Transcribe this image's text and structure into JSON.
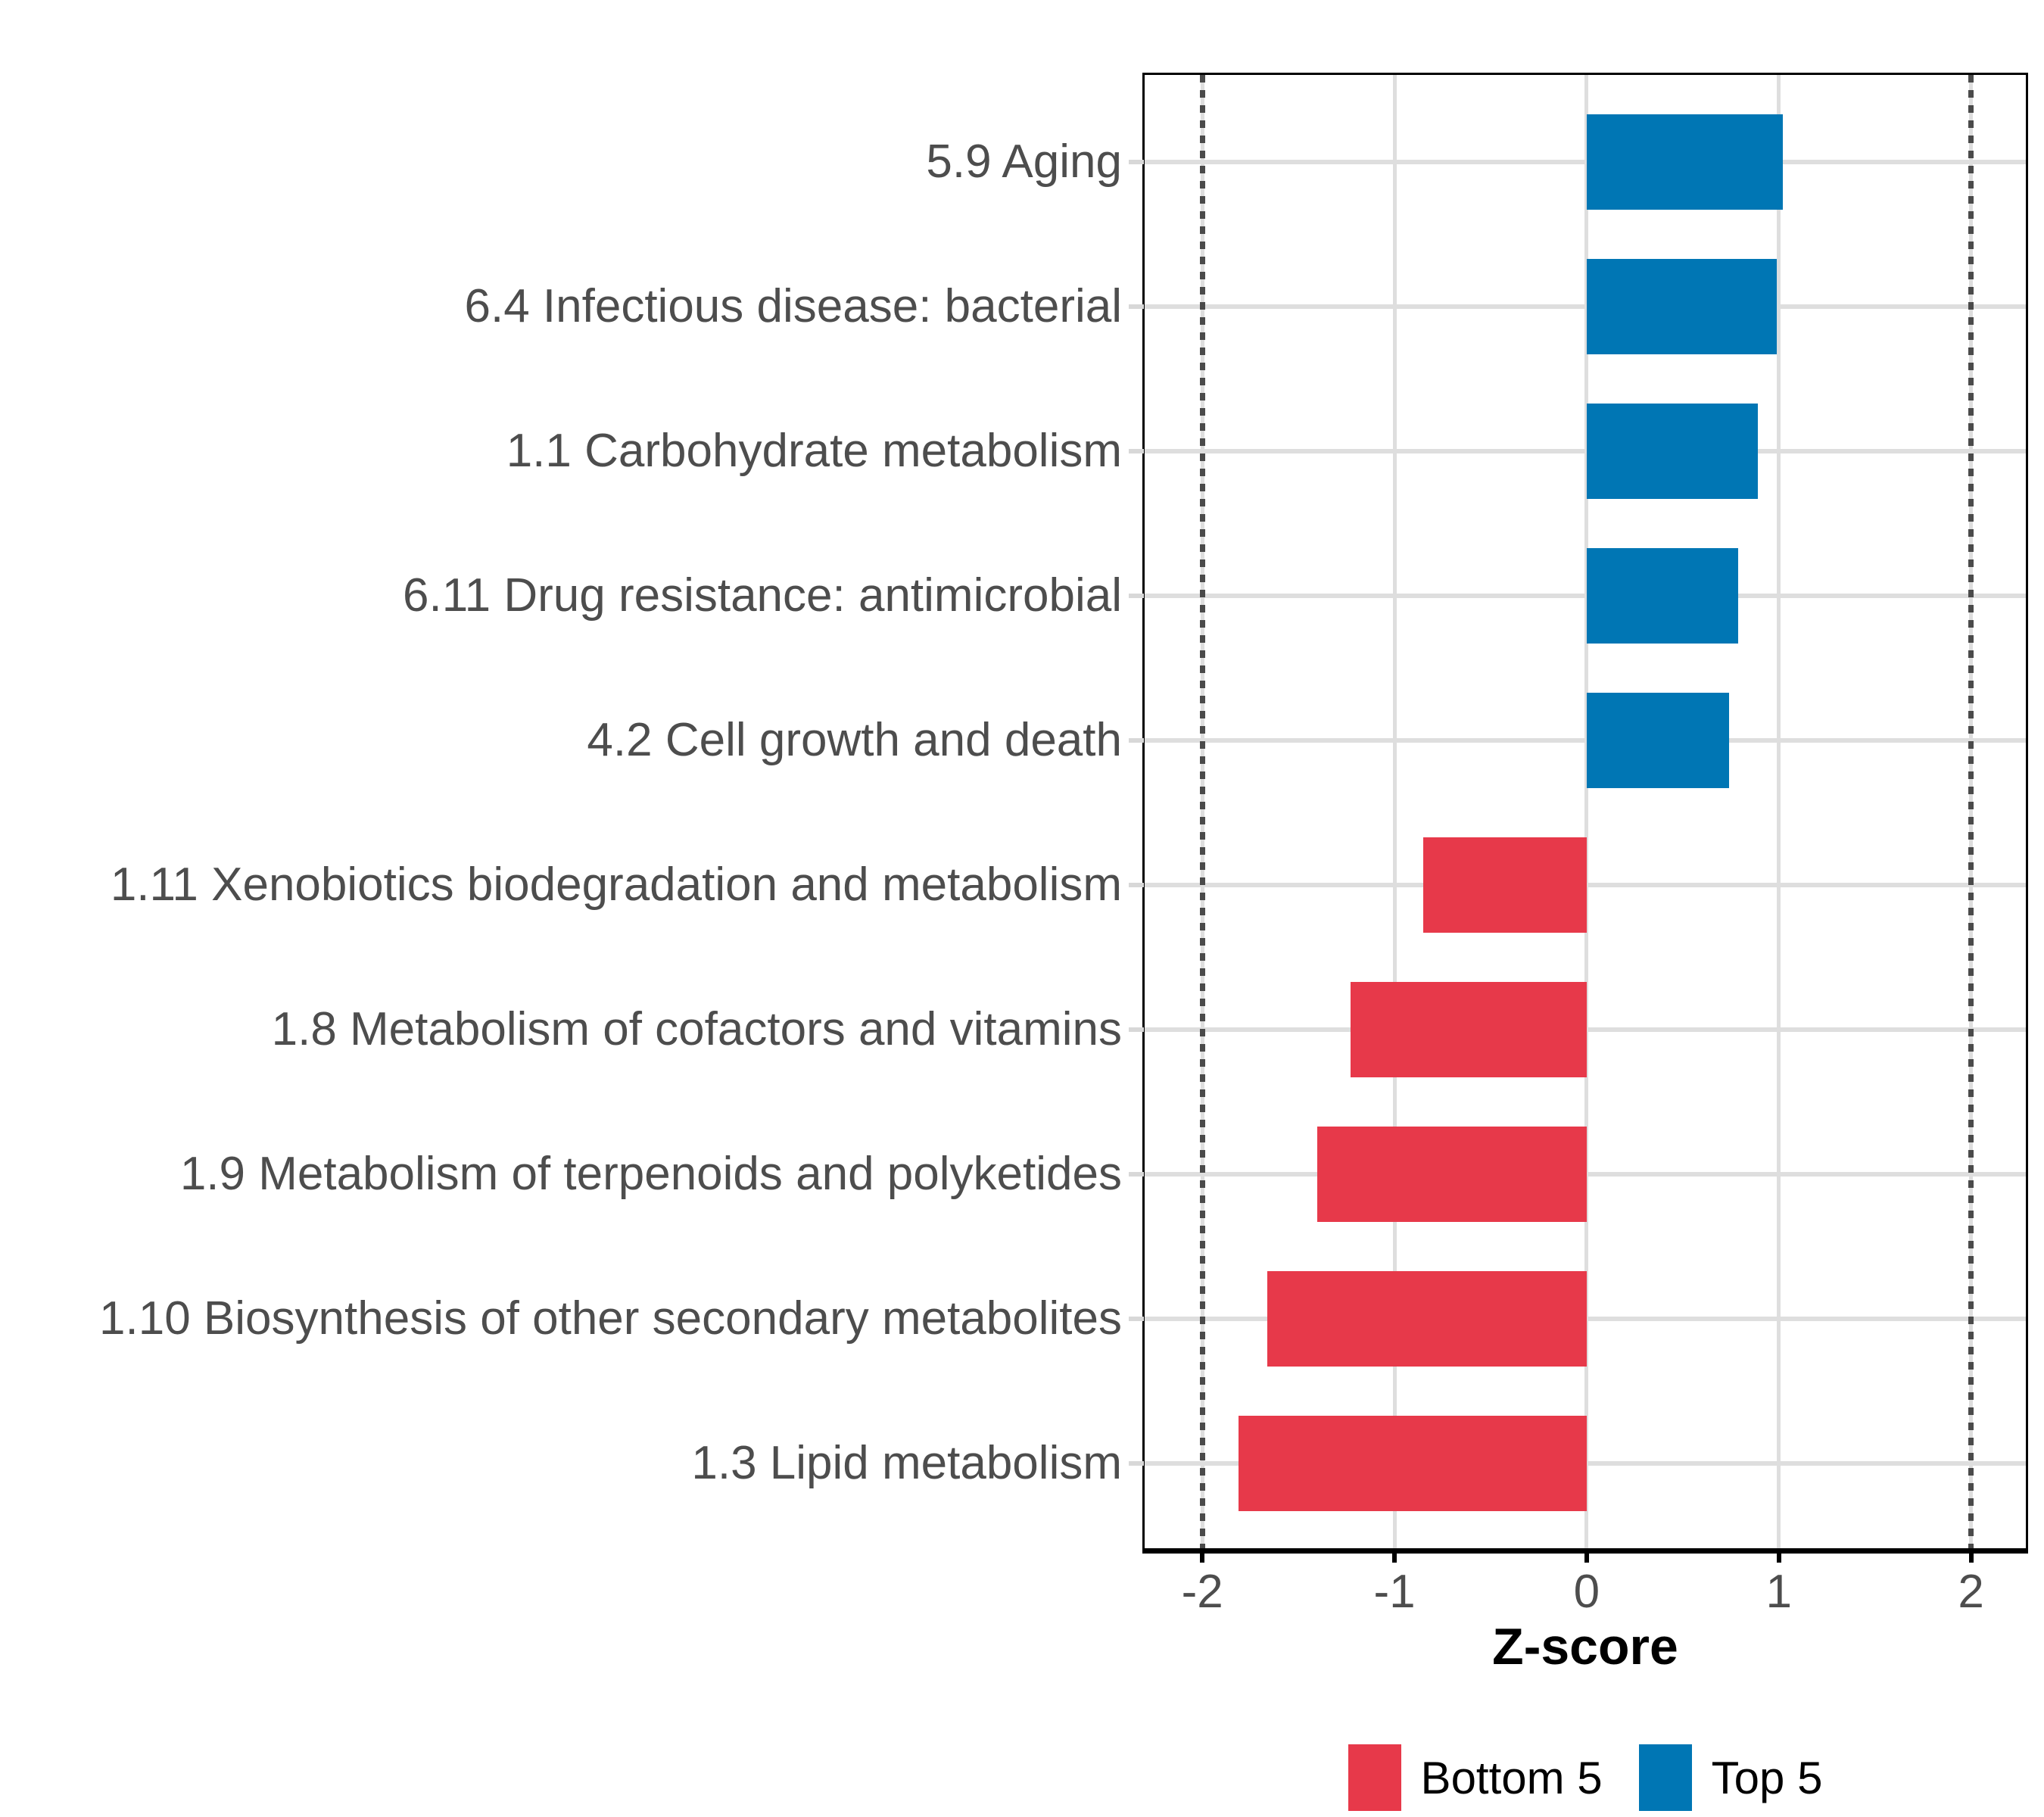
{
  "chart_data": {
    "type": "bar",
    "orientation": "horizontal",
    "title": "",
    "xlabel": "Z-score",
    "ylabel": "",
    "categories": [
      "5.9 Aging",
      "6.4 Infectious disease: bacterial",
      "1.1 Carbohydrate metabolism",
      "6.11 Drug resistance: antimicrobial",
      "4.2 Cell growth and death",
      "1.11 Xenobiotics biodegradation and metabolism",
      "1.8 Metabolism of cofactors and vitamins",
      "1.9 Metabolism of terpenoids and polyketides",
      "1.10 Biosynthesis of other secondary metabolites",
      "1.3 Lipid metabolism"
    ],
    "values": [
      1.02,
      0.99,
      0.89,
      0.79,
      0.74,
      -0.85,
      -1.23,
      -1.4,
      -1.66,
      -1.81
    ],
    "groups": [
      "Top 5",
      "Top 5",
      "Top 5",
      "Top 5",
      "Top 5",
      "Bottom 5",
      "Bottom 5",
      "Bottom 5",
      "Bottom 5",
      "Bottom 5"
    ],
    "group_colors": {
      "Top 5": "#0076B4",
      "Bottom 5": "#E7394A"
    },
    "x_ticks": [
      -2,
      -1,
      0,
      1,
      2
    ],
    "x_tick_labels": [
      "-2",
      "-1",
      "0",
      "1",
      "2"
    ],
    "reference_lines": [
      -2,
      2
    ],
    "xlim": [
      -2.3,
      2.285
    ],
    "grid": true,
    "legend_position": "bottom",
    "legend": [
      {
        "label": "Bottom 5",
        "color": "#E7394A"
      },
      {
        "label": "Top 5",
        "color": "#0076B4"
      }
    ]
  },
  "style": {
    "background": "#FFFFFF",
    "grid_color": "#DEDEDE",
    "axis_text_color": "#4D4D4D",
    "tick_color_y": "#D8D8D8",
    "tick_color_x": "#000000",
    "ref_line_color": "#4A4A4A",
    "panel_border_color": "#000000"
  }
}
